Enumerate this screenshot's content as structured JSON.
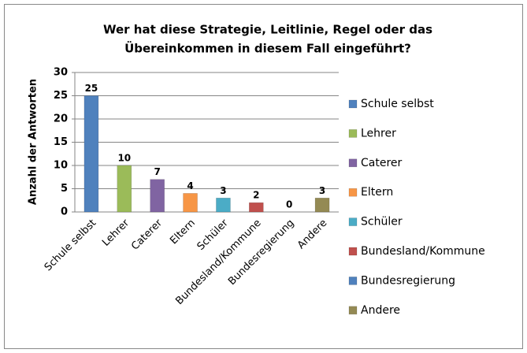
{
  "chart_data": {
    "type": "bar",
    "title": [
      "Wer hat diese Strategie, Leitlinie, Regel oder das",
      "Übereinkommen in diesem Fall eingeführt?"
    ],
    "ylabel": "Anzahl der Antworten",
    "categories": [
      "Schule selbst",
      "Lehrer",
      "Caterer",
      "Eltern",
      "Schüler",
      "Bundesland/Kommune",
      "Bundesregierung",
      "Andere"
    ],
    "values": [
      25,
      10,
      7,
      4,
      3,
      2,
      0,
      3
    ],
    "colors": [
      "#4f81bd",
      "#9bbb59",
      "#8064a2",
      "#f79646",
      "#4bacc6",
      "#c0504d",
      "#4f81bd",
      "#948a54"
    ],
    "ylim": [
      0,
      30
    ],
    "yticks": [
      0,
      5,
      10,
      15,
      20,
      25,
      30
    ],
    "grid": true,
    "legend": "right"
  }
}
